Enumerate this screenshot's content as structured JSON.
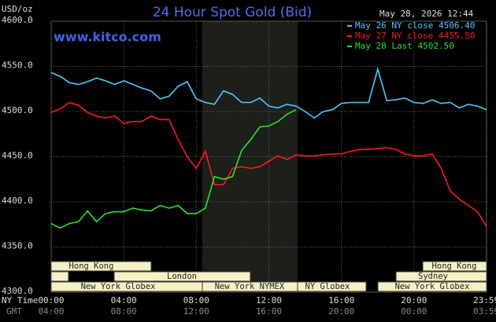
{
  "chart_data": {
    "type": "line",
    "title": "24 Hour Spot Gold (Bid)",
    "timestamp": "May 28, 2026 12:44",
    "site": "www.kitco.com",
    "y_label": "USD/oz",
    "x_label": "NY Time",
    "x2_label": "GMT",
    "sessions": [
      "Hong Kong",
      "Hong Kong",
      "London",
      "Sydney",
      "New York Globex",
      "New York NYMEX",
      "NY Globex",
      "New York Globex"
    ],
    "x": [
      0,
      0.5,
      1,
      1.5,
      2,
      2.5,
      3,
      3.5,
      4,
      4.5,
      5,
      5.5,
      6,
      6.5,
      7,
      7.5,
      8,
      8.5,
      9,
      9.5,
      10,
      10.5,
      11,
      11.5,
      12,
      12.5,
      13,
      13.5,
      14,
      14.5,
      15,
      15.5,
      16,
      16.5,
      17,
      17.5,
      18,
      18.5,
      19,
      19.5,
      20,
      20.5,
      21,
      21.5,
      22,
      22.5,
      23,
      23.5,
      24
    ],
    "series": [
      {
        "name": "May 26 NY close 4506.40",
        "color": "#4fc8ff",
        "values": [
          4543,
          4539,
          4532,
          4530,
          4533,
          4537,
          4534,
          4530,
          4534,
          4530,
          4526,
          4523,
          4514,
          4517,
          4528,
          4533,
          4514,
          4510,
          4508,
          4523,
          4519,
          4510,
          4510,
          4515,
          4506,
          4504,
          4508,
          4506,
          4500,
          4493,
          4500,
          4502,
          4509,
          4510,
          4510,
          4510,
          4547,
          4512,
          4513,
          4515,
          4510,
          4509,
          4513,
          4509,
          4510,
          4504,
          4508,
          4506,
          4502
        ]
      },
      {
        "name": "May 27 NY close 4455.50",
        "color": "#ff1a1a",
        "values": [
          4499,
          4503,
          4510,
          4507,
          4499,
          4495,
          4493,
          4495,
          4487,
          4489,
          4489,
          4495,
          4491,
          4491,
          4469,
          4450,
          4437,
          4456,
          4419,
          4419,
          4437,
          4439,
          4437,
          4439,
          4445,
          4451,
          4447,
          4452,
          4451,
          4451,
          4452,
          4453,
          4453,
          4456,
          4458,
          4458,
          4459,
          4460,
          4458,
          4453,
          4451,
          4451,
          4453,
          4437,
          4412,
          4403,
          4396,
          4389,
          4373
        ]
      },
      {
        "name": "May 28 Last 4502.50",
        "color": "#2ee02e",
        "values": [
          4376,
          4371,
          4376,
          4378,
          4390,
          4378,
          4387,
          4389,
          4389,
          4393,
          4391,
          4390,
          4396,
          4393,
          4396,
          4387,
          4387,
          4393,
          4428,
          4425,
          4428,
          4457,
          4469,
          4483,
          4484,
          4489,
          4497,
          4502,
          null,
          null,
          null,
          null,
          null,
          null,
          null,
          null,
          null,
          null,
          null,
          null,
          null,
          null,
          null,
          null,
          null,
          null,
          null,
          null,
          null
        ]
      }
    ],
    "xlim": [
      0,
      24
    ],
    "xticks": [
      {
        "value": 0,
        "label": "00:00"
      },
      {
        "value": 4,
        "label": "04:00"
      },
      {
        "value": 8,
        "label": "08:00"
      },
      {
        "value": 12,
        "label": "12:00"
      },
      {
        "value": 16,
        "label": "16:00"
      },
      {
        "value": 20,
        "label": "20:00"
      },
      {
        "value": 23.98,
        "label": "23:59"
      }
    ],
    "x2ticks": [
      "04:00",
      "08:00",
      "12:00",
      "16:00",
      "20:00",
      "00:00",
      "03:59"
    ],
    "ylim": [
      4300,
      4600
    ],
    "yticks": [
      {
        "value": 4300,
        "label": "4300.0"
      },
      {
        "value": 4350,
        "label": "4350.0"
      },
      {
        "value": 4400,
        "label": "4400.0"
      },
      {
        "value": 4450,
        "label": "4450.0"
      },
      {
        "value": 4500,
        "label": "4500.0"
      },
      {
        "value": 4550,
        "label": "4550.0"
      },
      {
        "value": 4600,
        "label": "4600.0"
      }
    ],
    "grid": true
  }
}
